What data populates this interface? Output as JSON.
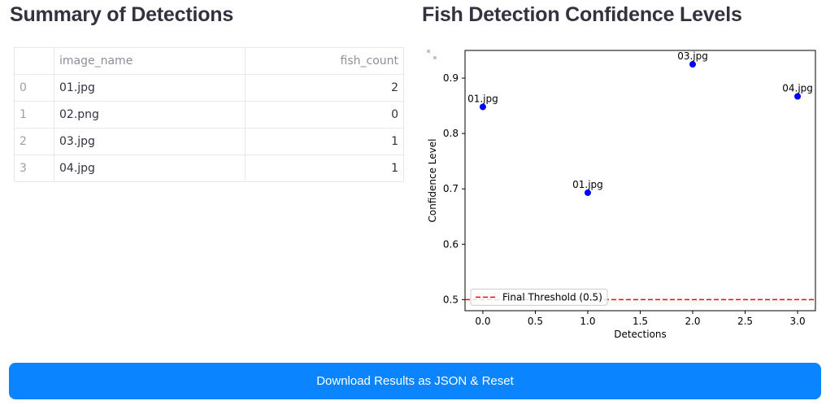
{
  "summary": {
    "heading": "Summary of Detections",
    "columns": [
      "",
      "image_name",
      "fish_count"
    ],
    "rows": [
      {
        "index": "0",
        "image_name": "01.jpg",
        "fish_count": "2"
      },
      {
        "index": "1",
        "image_name": "02.png",
        "fish_count": "0"
      },
      {
        "index": "2",
        "image_name": "03.jpg",
        "fish_count": "1"
      },
      {
        "index": "3",
        "image_name": "04.jpg",
        "fish_count": "1"
      }
    ]
  },
  "chart_section": {
    "heading": "Fish Detection Confidence Levels"
  },
  "chart_data": {
    "type": "scatter",
    "title": "",
    "xlabel": "Detections",
    "ylabel": "Confidence Level",
    "xlim": [
      -0.17,
      3.17
    ],
    "ylim": [
      0.48,
      0.95
    ],
    "x_ticks": [
      0.0,
      0.5,
      1.0,
      1.5,
      2.0,
      2.5,
      3.0
    ],
    "y_ticks": [
      0.5,
      0.6,
      0.7,
      0.8,
      0.9
    ],
    "points": [
      {
        "x": 0,
        "y": 0.848,
        "label": "01.jpg"
      },
      {
        "x": 1,
        "y": 0.693,
        "label": "01.jpg"
      },
      {
        "x": 2,
        "y": 0.925,
        "label": "03.jpg"
      },
      {
        "x": 3,
        "y": 0.867,
        "label": "04.jpg"
      }
    ],
    "point_color": "#0000ff",
    "threshold": {
      "y": 0.5,
      "label": "Final Threshold (0.5)",
      "color": "#ff0000",
      "style": "dashed"
    },
    "legend_position": "lower-left",
    "grid": false
  },
  "actions": {
    "download_label": "Download Results as JSON & Reset"
  },
  "icons": {
    "fullscreen": "expand-icon"
  }
}
